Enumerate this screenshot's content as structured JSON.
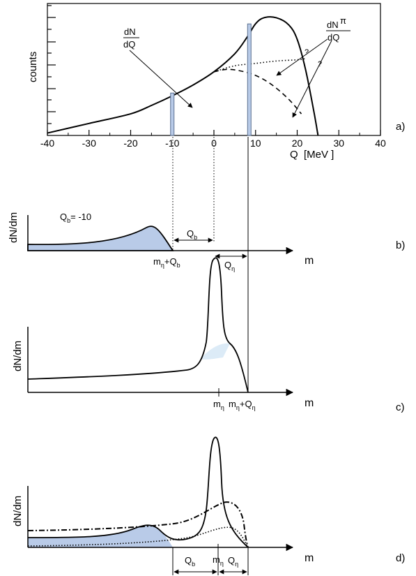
{
  "colors": {
    "fill": "#b9cbe8",
    "fill_light": "#dcebf7",
    "stroke": "#000000"
  },
  "panel_a": {
    "ylabel": "counts",
    "xlabel": "Q  [MeV ]",
    "tag": "a)",
    "x_ticks": [
      "-40",
      "-30",
      "-20",
      "-10",
      "0",
      "10",
      "20",
      "30",
      "40"
    ],
    "xlim": [
      -40,
      40
    ],
    "total_label": {
      "num": "dN",
      "den": "dQ"
    },
    "pion_label": {
      "num": "dN",
      "sup": "π",
      "den": "dQ"
    },
    "question_marks": [
      "?",
      "?"
    ]
  },
  "panel_b": {
    "ylabel": "dN/dm",
    "xlabel": "m",
    "tag": "b)",
    "qb_value": {
      "base": "Q",
      "sub": "b",
      "rest": "= -10"
    },
    "span_label": {
      "base": "Q",
      "sub": "b"
    },
    "mark_label": {
      "a": "m",
      "a_sub": "η",
      "b": "+Q",
      "b_sub": "b"
    },
    "right_span": {
      "base": "Q",
      "sub": "η"
    }
  },
  "panel_c": {
    "ylabel": "dN/dm",
    "xlabel": "m",
    "tag": "c)",
    "m_eta": {
      "base": "m",
      "sub": "η"
    },
    "m_eta_q": {
      "a": "m",
      "a_sub": "η",
      "b": "+Q",
      "b_sub": "η"
    }
  },
  "panel_d": {
    "ylabel": "dN/dm",
    "xlabel": "m",
    "tag": "d)",
    "span_qb": {
      "base": "Q",
      "sub": "b"
    },
    "m_eta": {
      "base": "m",
      "sub": "η"
    },
    "span_qeta": {
      "base": "Q",
      "sub": "η"
    }
  },
  "chart_data": [
    {
      "type": "line",
      "panel": "a",
      "xlabel": "Q  [MeV ]",
      "ylabel": "counts",
      "xlim": [
        -40,
        40
      ],
      "series": [
        {
          "style": "solid",
          "x": [
            -40,
            -30,
            -20,
            -15,
            -10,
            -5,
            0,
            5,
            8,
            10,
            12,
            15,
            18,
            20,
            22,
            24,
            25
          ],
          "y": [
            0.02,
            0.1,
            0.18,
            0.25,
            0.33,
            0.42,
            0.53,
            0.68,
            0.82,
            0.93,
            0.98,
            0.98,
            0.92,
            0.8,
            0.55,
            0.2,
            0.0
          ]
        },
        {
          "style": "dotted",
          "x": [
            0,
            5,
            10,
            15,
            20,
            22
          ],
          "y": [
            0.53,
            0.58,
            0.6,
            0.62,
            0.63,
            0.64
          ]
        },
        {
          "style": "dashed",
          "x": [
            0,
            3,
            6,
            10,
            14,
            18,
            21
          ],
          "y": [
            0.53,
            0.55,
            0.54,
            0.5,
            0.42,
            0.3,
            0.18
          ]
        }
      ],
      "bins": [
        -10,
        8.5
      ]
    },
    {
      "type": "area",
      "panel": "b",
      "xlabel": "m",
      "ylabel": "dN/dm",
      "qb": -10
    },
    {
      "type": "line",
      "panel": "c",
      "xlabel": "m",
      "ylabel": "dN/dm"
    },
    {
      "type": "line",
      "panel": "d",
      "xlabel": "m",
      "ylabel": "dN/dm"
    }
  ]
}
